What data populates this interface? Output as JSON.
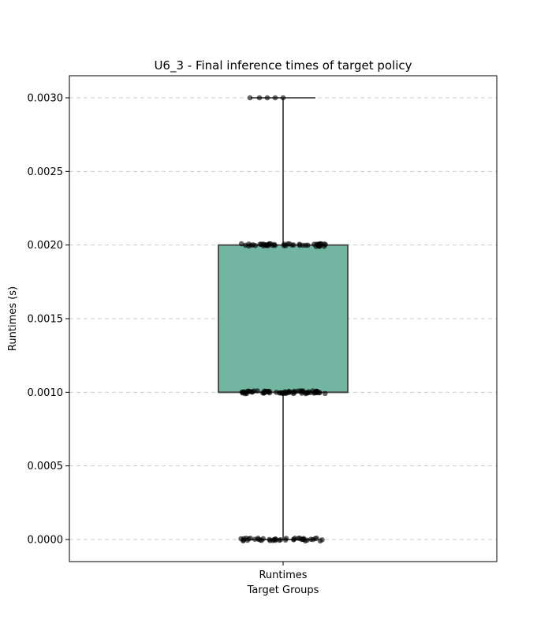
{
  "chart_data": {
    "type": "box",
    "title": "U6_3 - Final inference times of target policy",
    "xlabel": "Target Groups",
    "ylabel": "Runtimes (s)",
    "categories": [
      "Runtimes"
    ],
    "ylim": [
      -0.00015,
      0.00315
    ],
    "yticks": [
      0.0,
      0.0005,
      0.001,
      0.0015,
      0.002,
      0.0025,
      0.003
    ],
    "ytick_labels": [
      "0.0000",
      "0.0005",
      "0.0010",
      "0.0015",
      "0.0020",
      "0.0025",
      "0.0030"
    ],
    "grid": true,
    "box": {
      "whisker_low": 0.0,
      "q1": 0.001,
      "median": 0.001,
      "q3": 0.002,
      "whisker_high": 0.003
    },
    "points": [
      {
        "value": 0.003,
        "count": 5
      },
      {
        "value": 0.002,
        "count": 48
      },
      {
        "value": 0.001,
        "count": 70
      },
      {
        "value": 0.0,
        "count": 42
      }
    ],
    "colors": {
      "box_fill": "#72b5a1",
      "box_edge": "#444444",
      "points": "#000000",
      "grid": "#cccccc"
    }
  }
}
